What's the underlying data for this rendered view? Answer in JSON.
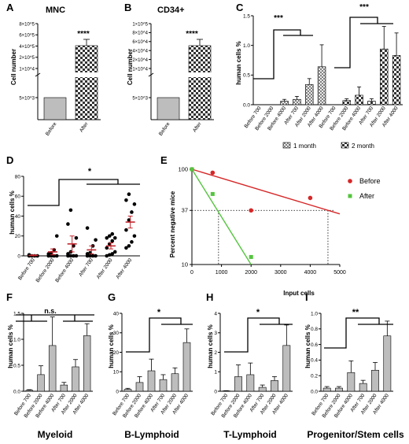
{
  "colors": {
    "before": "#d62728",
    "after": "#55c43f",
    "bar_fill": "#bdbdbd",
    "mean_line": "#c0262d",
    "checker_light": "#ffffff",
    "checker_dark": "#333333"
  },
  "panels": {
    "A": {
      "label": "A",
      "title": "MNC",
      "ylabel": "Cell number",
      "sig": "****",
      "ytick_labels": [
        "5×10^3",
        "1×10^4",
        "2×10^5",
        "4×10^5",
        "6×10^5",
        "8×10^5"
      ]
    },
    "B": {
      "label": "B",
      "title": "CD34+",
      "ylabel": "Cell number",
      "sig": "****",
      "ytick_labels": [
        "5×10^3",
        "1×10^4",
        "2×10^4",
        "4×10^4",
        "6×10^4",
        "8×10^4",
        "1×10^5"
      ]
    },
    "C": {
      "label": "C",
      "ylabel": "human cells %",
      "sig_left": "***",
      "sig_right": "***",
      "legend": [
        "1 month",
        "2 month"
      ]
    },
    "D": {
      "label": "D",
      "ylabel": "human cells %",
      "sig": "*"
    },
    "E": {
      "label": "E",
      "ylabel": "Percent negative mice",
      "xlabel": "Input cells",
      "legend": [
        "Before",
        "After"
      ],
      "ref_y_label": "37"
    },
    "F": {
      "label": "F",
      "ylabel": "human cells %",
      "sig": "n.s.",
      "bottom": "Myeloid"
    },
    "G": {
      "label": "G",
      "ylabel": "human cells %",
      "sig": "*",
      "bottom": "B-Lymphoid"
    },
    "H": {
      "label": "H",
      "ylabel": "human cells %",
      "sig": "*",
      "bottom": "T-Lymphoid"
    },
    "I": {
      "label": "I",
      "ylabel": "human cells %",
      "sig": "**",
      "bottom": "Progenitor/Stem cells"
    }
  },
  "chart_data": [
    {
      "panel": "A",
      "type": "bar",
      "categories": [
        "Before",
        "After"
      ],
      "values": [
        5000,
        550000
      ],
      "errors": [
        0,
        50000
      ]
    },
    {
      "panel": "B",
      "type": "bar",
      "categories": [
        "Before",
        "After"
      ],
      "values": [
        5000,
        80000
      ],
      "errors": [
        0,
        10000
      ]
    },
    {
      "panel": "C",
      "type": "bar",
      "categories": [
        "Before 700",
        "Before 2000",
        "Before 4000",
        "After 700",
        "After 2000",
        "After 4000"
      ],
      "ylim": [
        0,
        1.5
      ],
      "yticks": [
        0.0,
        0.5,
        1.0,
        1.5
      ],
      "series": [
        {
          "name": "1 month",
          "values": [
            0.0,
            0.0,
            0.06,
            0.09,
            0.34,
            0.64
          ],
          "errors": [
            0,
            0,
            0.03,
            0.05,
            0.1,
            0.37
          ]
        },
        {
          "name": "2 month",
          "values": [
            0.0,
            0.07,
            0.16,
            0.06,
            0.94,
            0.83
          ],
          "errors": [
            0,
            0.03,
            0.14,
            0.04,
            0.38,
            0.38
          ]
        }
      ]
    },
    {
      "panel": "D",
      "type": "scatter",
      "categories": [
        "Before 700",
        "Before 2000",
        "Before 4000",
        "After 700",
        "After 2000",
        "After 4000"
      ],
      "ylim": [
        0,
        80
      ],
      "yticks": [
        0,
        20,
        40,
        60,
        80
      ],
      "points": [
        [
          0,
          0,
          0,
          0,
          1
        ],
        [
          0,
          0,
          0,
          0,
          2,
          3,
          6,
          20
        ],
        [
          0,
          0,
          0,
          0,
          2,
          4,
          10,
          18,
          32,
          46
        ],
        [
          0,
          0,
          0,
          0,
          2,
          3,
          10,
          16,
          28
        ],
        [
          0,
          1,
          2,
          4,
          8,
          12,
          15,
          18,
          18,
          20,
          22
        ],
        [
          8,
          10,
          14,
          20,
          26,
          36,
          44,
          52,
          56,
          62
        ]
      ],
      "means": [
        0.5,
        4,
        12,
        6,
        10,
        34
      ],
      "sem": [
        0.5,
        3,
        8,
        4,
        3,
        6
      ]
    },
    {
      "panel": "E",
      "type": "line",
      "ylog": true,
      "xlim": [
        0,
        5000
      ],
      "xticks": [
        0,
        1000,
        2000,
        3000,
        4000,
        5000
      ],
      "yticks": [
        10,
        37,
        100
      ],
      "series": [
        {
          "name": "Before",
          "points": [
            [
              0,
              100
            ],
            [
              700,
              92
            ],
            [
              2000,
              37
            ],
            [
              4000,
              50
            ]
          ],
          "fit": [
            [
              0,
              100
            ],
            [
              5000,
              34
            ]
          ]
        },
        {
          "name": "After",
          "points": [
            [
              0,
              100
            ],
            [
              700,
              55
            ],
            [
              2000,
              12
            ]
          ],
          "fit": [
            [
              0,
              100
            ],
            [
              2000,
              10
            ]
          ]
        }
      ],
      "intercepts_x": [
        900,
        4600
      ]
    },
    {
      "panel": "F",
      "type": "bar",
      "categories": [
        "Before 700",
        "Before 2000",
        "Before 4000",
        "After 700",
        "After 2000",
        "After 4000"
      ],
      "ylim": [
        0,
        1.5
      ],
      "yticks": [
        0.0,
        0.5,
        1.0,
        1.5
      ],
      "values": [
        0.02,
        0.32,
        0.88,
        0.12,
        0.47,
        1.07
      ],
      "errors": [
        0.01,
        0.17,
        0.55,
        0.05,
        0.14,
        0.23
      ]
    },
    {
      "panel": "G",
      "type": "bar",
      "categories": [
        "Before 700",
        "Before 2000",
        "Before 4000",
        "After 700",
        "After 2000",
        "After 4000"
      ],
      "ylim": [
        0,
        40
      ],
      "yticks": [
        0,
        10,
        20,
        30,
        40
      ],
      "values": [
        1,
        4.5,
        10.5,
        6,
        9,
        25
      ],
      "errors": [
        0.5,
        3,
        6,
        2.5,
        3,
        7
      ]
    },
    {
      "panel": "H",
      "type": "bar",
      "categories": [
        "Before 700",
        "Before 2000",
        "Before 4000",
        "After 700",
        "After 2000",
        "After 4000"
      ],
      "ylim": [
        0,
        4
      ],
      "yticks": [
        0,
        1,
        2,
        3,
        4
      ],
      "values": [
        0.02,
        0.75,
        0.85,
        0.2,
        0.55,
        2.35
      ],
      "errors": [
        0.01,
        0.6,
        0.6,
        0.12,
        0.2,
        1.05
      ]
    },
    {
      "panel": "I",
      "type": "bar",
      "categories": [
        "Before 700",
        "Before 2000",
        "Before 4000",
        "After 700",
        "After 2000",
        "After 4000"
      ],
      "ylim": [
        0,
        1.0
      ],
      "yticks": [
        0.0,
        0.2,
        0.4,
        0.6,
        0.8,
        1.0
      ],
      "values": [
        0.04,
        0.04,
        0.24,
        0.1,
        0.27,
        0.71
      ],
      "errors": [
        0.02,
        0.02,
        0.15,
        0.04,
        0.1,
        0.19
      ]
    }
  ]
}
